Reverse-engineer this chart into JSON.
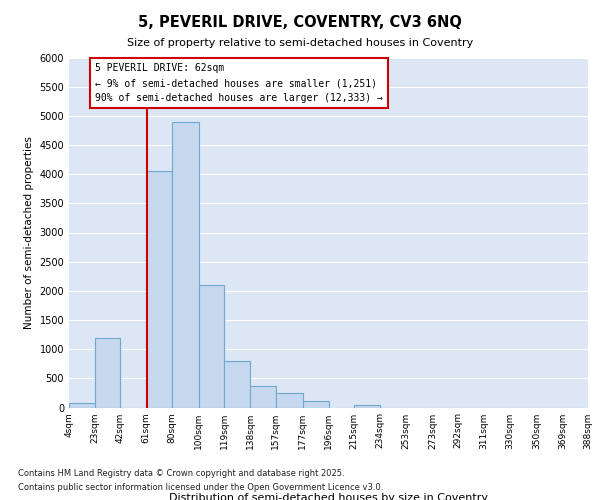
{
  "title": "5, PEVERIL DRIVE, COVENTRY, CV3 6NQ",
  "subtitle": "Size of property relative to semi-detached houses in Coventry",
  "xlabel": "Distribution of semi-detached houses by size in Coventry",
  "ylabel": "Number of semi-detached properties",
  "bar_color": "#c5d8ed",
  "bar_edge_color": "#6fa8d0",
  "background_color": "#dce6f5",
  "grid_color": "#ffffff",
  "bin_labels": [
    "4sqm",
    "23sqm",
    "42sqm",
    "61sqm",
    "80sqm",
    "100sqm",
    "119sqm",
    "138sqm",
    "157sqm",
    "177sqm",
    "196sqm",
    "215sqm",
    "234sqm",
    "253sqm",
    "273sqm",
    "292sqm",
    "311sqm",
    "330sqm",
    "350sqm",
    "369sqm",
    "388sqm"
  ],
  "bar_heights": [
    75,
    1200,
    0,
    4050,
    4900,
    2100,
    800,
    370,
    250,
    120,
    0,
    50,
    0,
    0,
    0,
    0,
    0,
    0,
    0,
    0
  ],
  "bin_edges": [
    4,
    23,
    42,
    61,
    80,
    100,
    119,
    138,
    157,
    177,
    196,
    215,
    234,
    253,
    273,
    292,
    311,
    330,
    350,
    369,
    388
  ],
  "ylim": [
    0,
    6000
  ],
  "yticks": [
    0,
    500,
    1000,
    1500,
    2000,
    2500,
    3000,
    3500,
    4000,
    4500,
    5000,
    5500,
    6000
  ],
  "property_size": 62,
  "vline_color": "#cc0000",
  "annotation_title": "5 PEVERIL DRIVE: 62sqm",
  "annotation_line1": "← 9% of semi-detached houses are smaller (1,251)",
  "annotation_line2": "90% of semi-detached houses are larger (12,333) →",
  "annotation_box_color": "#cc0000",
  "footnote1": "Contains HM Land Registry data © Crown copyright and database right 2025.",
  "footnote2": "Contains public sector information licensed under the Open Government Licence v3.0."
}
